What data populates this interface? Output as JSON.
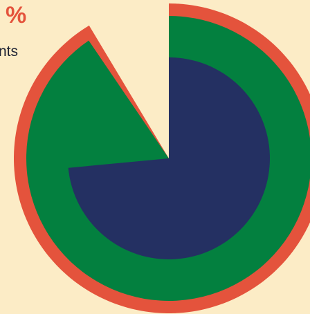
{
  "texts": {
    "percent_fragment": "%",
    "caption_fragment": "nts"
  },
  "colors": {
    "background": "#fcecc6",
    "outer_ring": "#e4533c",
    "middle_ring": "#03803f",
    "inner_pie": "#243062"
  },
  "chart_data": {
    "type": "pie",
    "title": "",
    "start_angle_deg": 0,
    "direction": "clockwise",
    "series": [
      {
        "level": "outer",
        "color": "#e4533c",
        "fraction": 0.914
      },
      {
        "level": "middle",
        "color": "#03803f",
        "fraction": 0.905
      },
      {
        "level": "inner",
        "color": "#243062",
        "fraction": 0.735
      }
    ]
  }
}
